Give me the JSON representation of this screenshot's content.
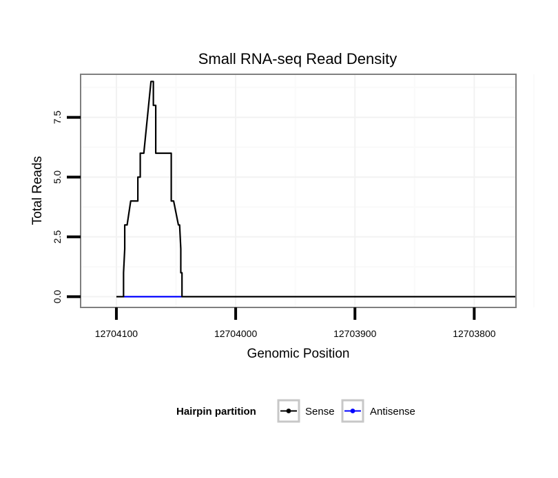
{
  "chart_data": {
    "type": "line",
    "title": "Small RNA-seq Read Density",
    "xlabel": "Genomic Position",
    "ylabel": "Total Reads",
    "x_reversed": true,
    "xlim": [
      12704130,
      12703765
    ],
    "ylim": [
      -0.45,
      9.3
    ],
    "x_ticks": [
      12704100,
      12704000,
      12703900,
      12703800
    ],
    "x_tick_labels": [
      "12704100",
      "12704000",
      "12703900",
      "12703800"
    ],
    "y_ticks": [
      0,
      2.5,
      5.0,
      7.5
    ],
    "y_tick_labels": [
      "0.0",
      "2.5",
      "5.0",
      "7.5"
    ],
    "grid": true,
    "legend": {
      "title": "Hairpin partition",
      "position": "bottom",
      "entries": [
        "Sense",
        "Antisense"
      ]
    },
    "series": [
      {
        "name": "Sense",
        "color": "#000000",
        "x": [
          12704100,
          12704094,
          12704094,
          12704093,
          12704093,
          12704092,
          12704091,
          12704091,
          12704088,
          12704088,
          12704082,
          12704082,
          12704080,
          12704080,
          12704077,
          12704077,
          12704073,
          12704073,
          12704071,
          12704071,
          12704069,
          12704069,
          12704067,
          12704067,
          12704061,
          12704061,
          12704054,
          12704054,
          12704052,
          12704052,
          12704048,
          12704048,
          12704047,
          12704046,
          12704046,
          12704045,
          12704045,
          12703765
        ],
        "y": [
          0,
          0,
          1,
          2,
          3,
          3,
          3,
          3,
          4,
          4,
          4,
          5,
          5,
          6,
          6,
          6,
          8,
          8,
          9,
          9,
          9,
          8,
          8,
          6,
          6,
          6,
          6,
          4,
          4,
          4,
          3,
          3,
          3,
          2,
          1,
          1,
          0,
          0
        ]
      },
      {
        "name": "Antisense",
        "color": "#0000ff",
        "x": [
          12704094,
          12704045
        ],
        "y": [
          0,
          0
        ]
      }
    ]
  }
}
